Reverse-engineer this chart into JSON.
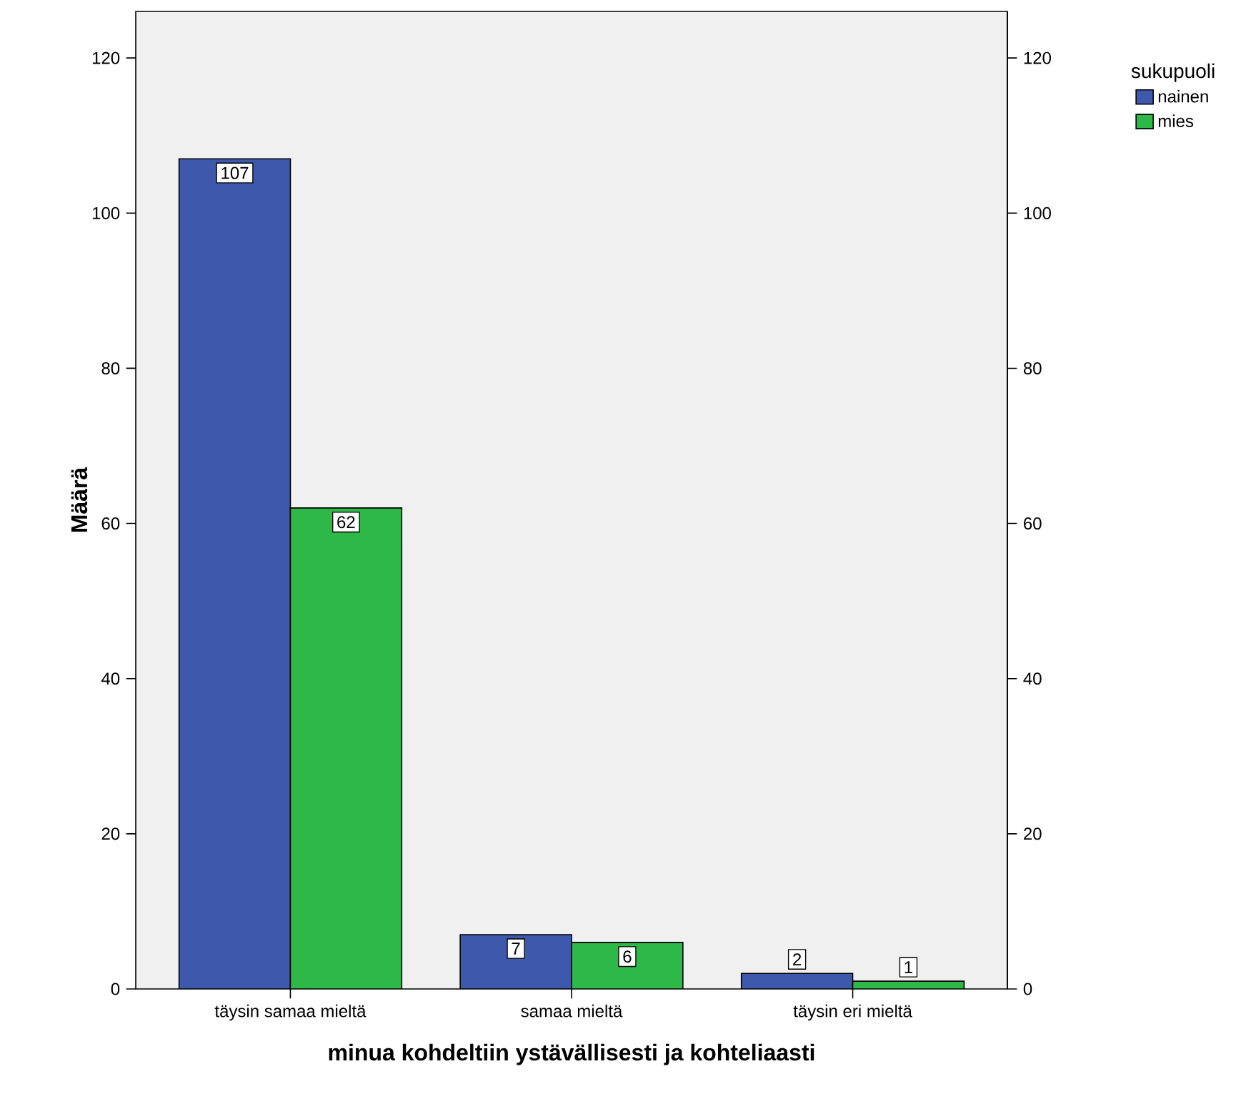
{
  "chart_data": {
    "type": "bar",
    "xlabel": "minua kohdeltiin ystävällisesti ja kohteliaasti",
    "ylabel": "Määrä",
    "legend_title": "sukupuoli",
    "categories": [
      "täysin samaa mieltä",
      "samaa mieltä",
      "täysin eri mieltä"
    ],
    "series": [
      {
        "name": "nainen",
        "color": "#3e58ac",
        "values": [
          107,
          7,
          2
        ]
      },
      {
        "name": "mies",
        "color": "#2eb848",
        "values": [
          62,
          6,
          1
        ]
      }
    ],
    "ylim": [
      0,
      126
    ],
    "yticks": [
      0,
      20,
      40,
      60,
      80,
      100,
      120
    ],
    "y2lim": [
      0,
      126
    ],
    "y2ticks": [
      0,
      20,
      40,
      60,
      80,
      100,
      120
    ],
    "data_labels": true,
    "grid": false,
    "legend": "top right"
  }
}
